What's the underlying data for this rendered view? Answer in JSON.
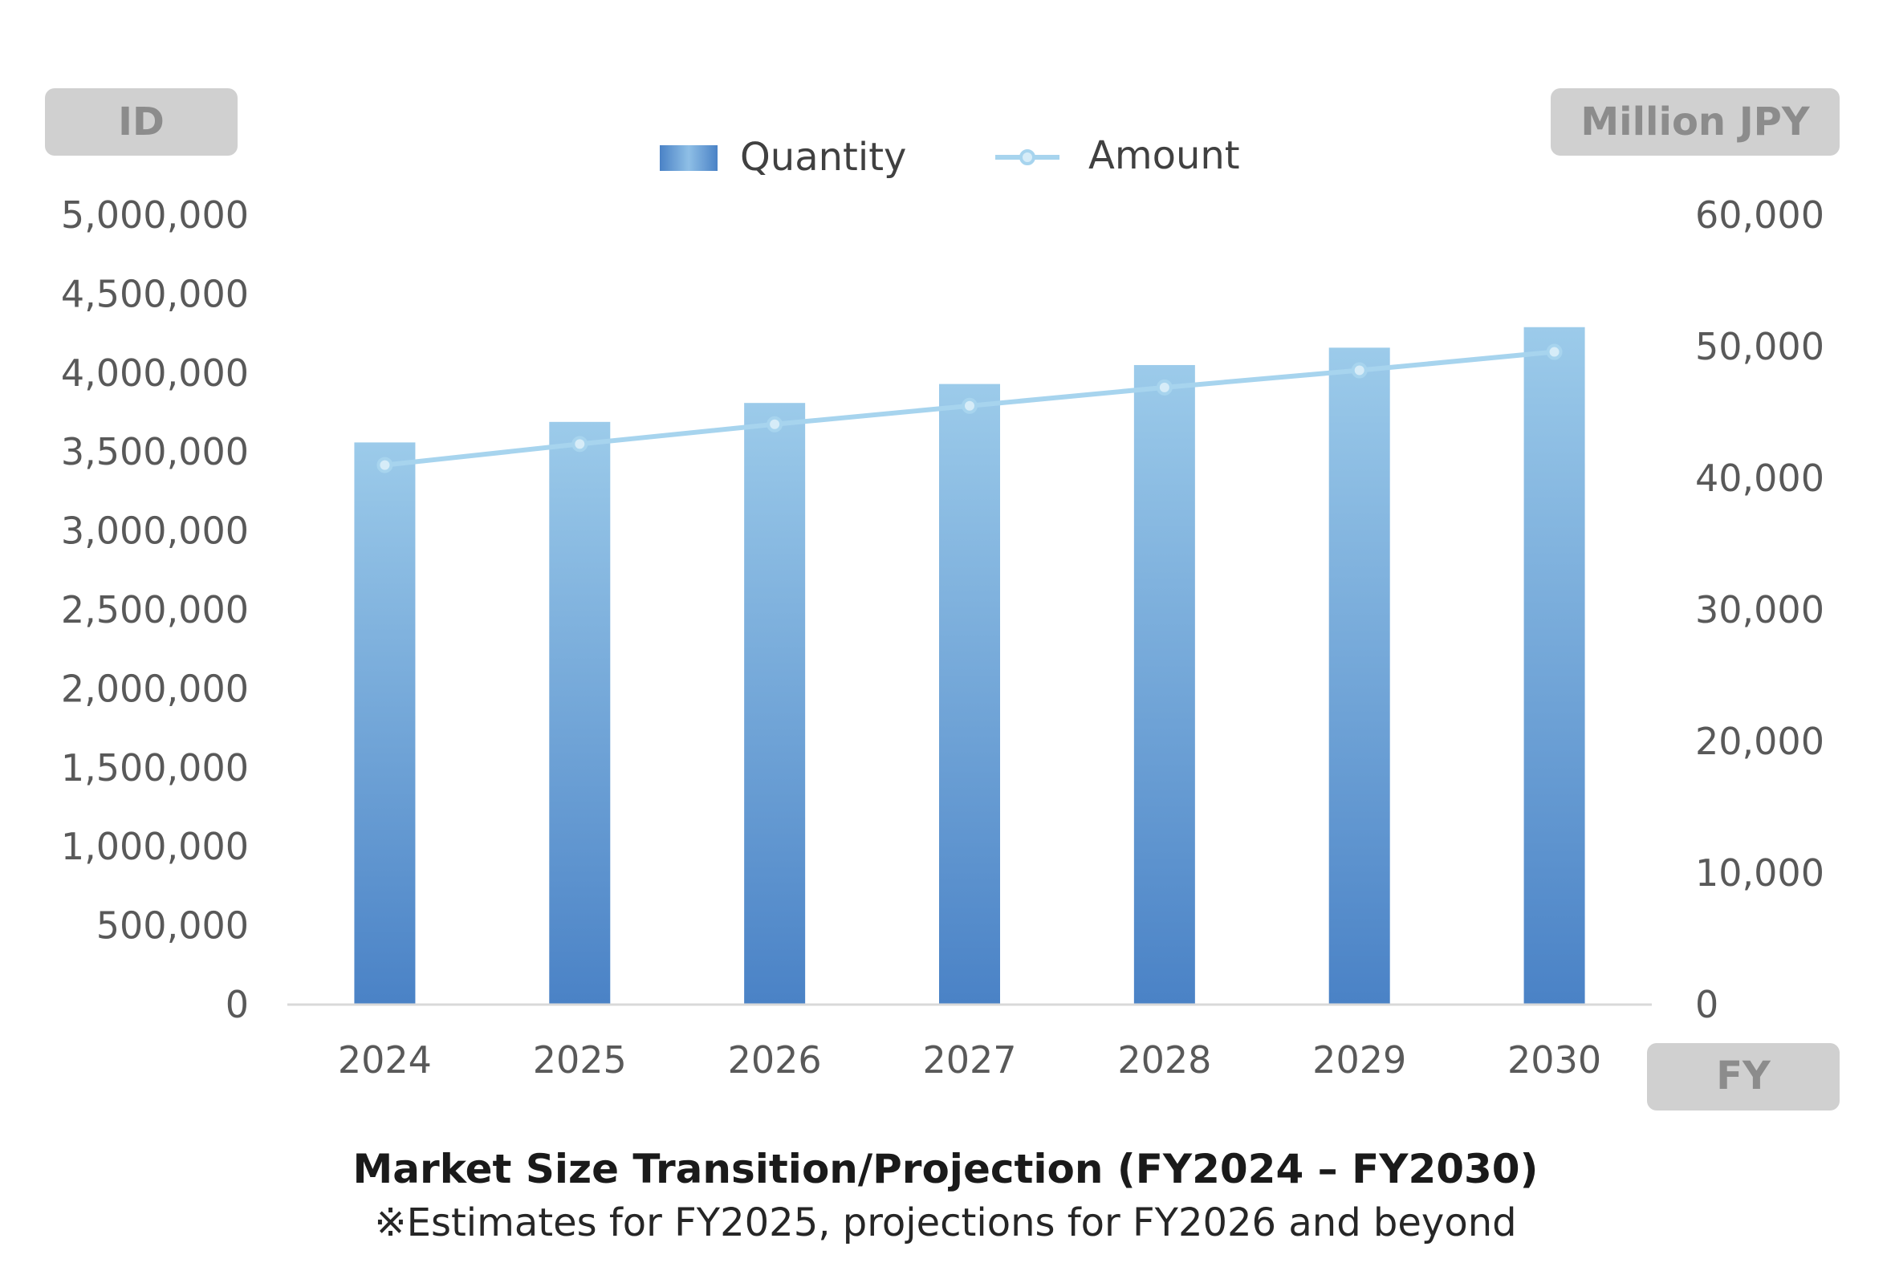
{
  "chart_data": {
    "type": "bar",
    "title": "Market Size Transition/Projection (FY2024 – FY2030)",
    "subtitle": "※Estimates for FY2025, projections for FY2026 and beyond",
    "categories": [
      "2024",
      "2025",
      "2026",
      "2027",
      "2028",
      "2029",
      "2030"
    ],
    "xlabel": "FY",
    "ylabel": "ID",
    "y2label": "Million JPY",
    "ylim": [
      0,
      5000000
    ],
    "y2lim": [
      0,
      60000
    ],
    "yticks": [
      "0",
      "500,000",
      "1,000,000",
      "1,500,000",
      "2,000,000",
      "2,500,000",
      "3,000,000",
      "3,500,000",
      "4,000,000",
      "4,500,000",
      "5,000,000"
    ],
    "yticks_values": [
      0,
      500000,
      1000000,
      1500000,
      2000000,
      2500000,
      3000000,
      3500000,
      4000000,
      4500000,
      5000000
    ],
    "y2ticks": [
      "0",
      "10,000",
      "20,000",
      "30,000",
      "40,000",
      "50,000",
      "60,000"
    ],
    "y2ticks_values": [
      0,
      10000,
      20000,
      30000,
      40000,
      50000,
      60000
    ],
    "legend_position": "top-center",
    "grid": false,
    "series": [
      {
        "name": "Quantity",
        "type": "bar",
        "axis": "left",
        "values": [
          3560000,
          3690000,
          3810000,
          3930000,
          4050000,
          4160000,
          4290000
        ]
      },
      {
        "name": "Amount",
        "type": "line",
        "axis": "right",
        "values": [
          41000,
          42600,
          44100,
          45500,
          46900,
          48200,
          49600
        ]
      }
    ],
    "colors": {
      "bar_top": "#9ccbea",
      "bar_bottom": "#4a82c6",
      "line": "#a7d4ee",
      "axis_box": "#d0d0d0"
    }
  }
}
